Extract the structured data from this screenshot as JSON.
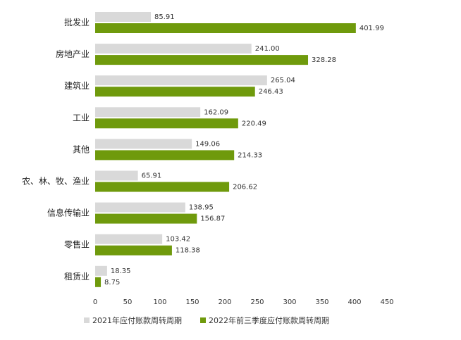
{
  "chart_data": {
    "type": "bar",
    "orientation": "horizontal",
    "categories": [
      "批发业",
      "房地产业",
      "建筑业",
      "工业",
      "其他",
      "农、林、牧、渔业",
      "信息传输业",
      "零售业",
      "租赁业"
    ],
    "series": [
      {
        "name": "2021年应付账款周转周期",
        "color": "#d9d9d9",
        "values": [
          85.91,
          241.0,
          265.04,
          162.09,
          149.06,
          65.91,
          138.95,
          103.42,
          18.35
        ],
        "labels": [
          "85.91",
          "241.00",
          "265.04",
          "162.09",
          "149.06",
          "65.91",
          "138.95",
          "103.42",
          "18.35"
        ]
      },
      {
        "name": "2022年前三季度应付账款周转周期",
        "color": "#6f9a0c",
        "values": [
          401.99,
          328.28,
          246.43,
          220.49,
          214.33,
          206.62,
          156.87,
          118.38,
          8.75
        ],
        "labels": [
          "401.99",
          "328.28",
          "246.43",
          "220.49",
          "214.33",
          "206.62",
          "156.87",
          "118.38",
          "8.75"
        ]
      }
    ],
    "xlim": [
      0,
      450
    ],
    "xticks": [
      "0",
      "50",
      "100",
      "150",
      "200",
      "250",
      "300",
      "350",
      "400",
      "450"
    ],
    "grid": false,
    "legend_position": "bottom"
  }
}
